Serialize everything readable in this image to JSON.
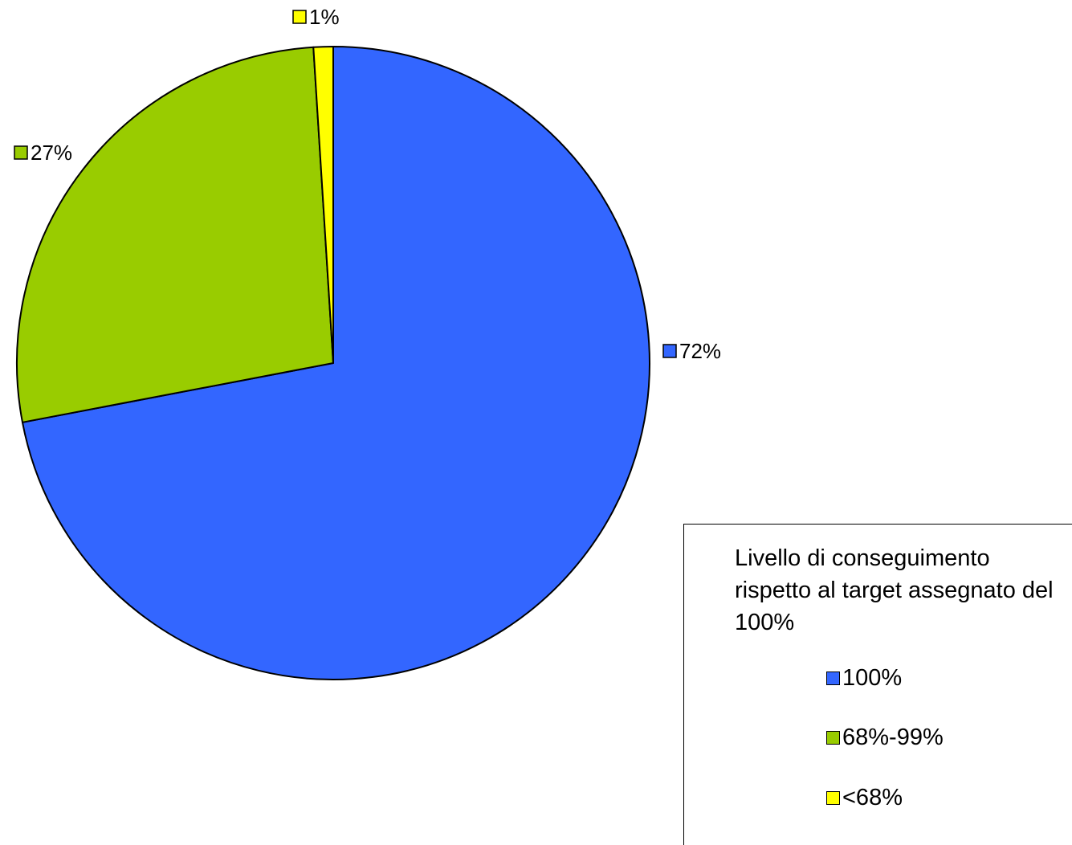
{
  "chart_data": {
    "type": "pie",
    "slices": [
      {
        "name": "100%",
        "value": 72,
        "label": "72%",
        "color": "#3366FF"
      },
      {
        "name": "68%-99%",
        "value": 27,
        "label": "27%",
        "color": "#99CC00"
      },
      {
        "name": "<68%",
        "value": 1,
        "label": "1%",
        "color": "#FFFF00"
      }
    ],
    "legend": {
      "title": "Livello di conseguimento rispetto al target assegnato del 100%",
      "placement": "bottom-right"
    },
    "start_angle": "12 o'clock",
    "direction": "clockwise"
  }
}
